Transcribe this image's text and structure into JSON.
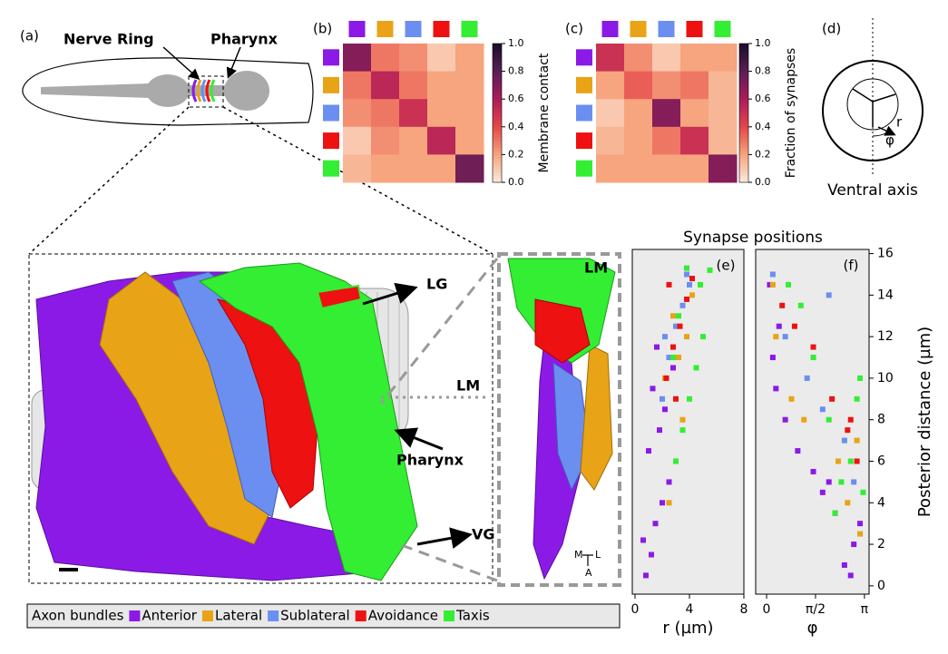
{
  "figure": {
    "panel_labels": [
      "(a)",
      "(b)",
      "(c)",
      "(d)",
      "(e)",
      "(f)"
    ],
    "worm_labels": [
      "Nerve Ring",
      "Pharynx"
    ],
    "axis_diagram": {
      "r": "r",
      "phi": "φ",
      "caption": "Ventral axis"
    },
    "render_labels": [
      "LG",
      "LM",
      "Pharynx",
      "VG"
    ],
    "cross_section": {
      "label": "LM",
      "orientation": [
        "M",
        "L",
        "A"
      ]
    },
    "scatter_title": "Synapse positions",
    "legend_title": "Axon bundles"
  },
  "chart_data": [
    {
      "type": "heatmap",
      "colorbar_label": "Membrane contact",
      "category_colors": [
        "#8c1ae6",
        "#e8a317",
        "#6b8ff0",
        "#ee1111",
        "#33ee33"
      ],
      "values": [
        [
          0.7,
          0.3,
          0.25,
          0.1,
          0.2
        ],
        [
          0.3,
          0.55,
          0.3,
          0.2,
          0.2
        ],
        [
          0.25,
          0.3,
          0.5,
          0.2,
          0.2
        ],
        [
          0.1,
          0.25,
          0.2,
          0.55,
          0.2
        ],
        [
          0.15,
          0.2,
          0.2,
          0.2,
          0.75
        ]
      ],
      "zlim": [
        0,
        1
      ],
      "zticks": [
        {
          "value": 0,
          "label": "0.0"
        },
        0.2,
        0.4,
        0.6,
        0.8,
        {
          "value": 1,
          "label": "1.0"
        }
      ],
      "colorscale": [
        "#fbebe0",
        "#f6a57e",
        "#e5484a",
        "#ad1c5a",
        "#5a1e55",
        "#1a0e2a"
      ]
    },
    {
      "type": "heatmap",
      "colorbar_label": "Fraction of synapses",
      "category_colors": [
        "#8c1ae6",
        "#e8a317",
        "#6b8ff0",
        "#ee1111",
        "#33ee33"
      ],
      "values": [
        [
          0.5,
          0.25,
          0.1,
          0.2,
          0.2
        ],
        [
          0.2,
          0.35,
          0.25,
          0.3,
          0.15
        ],
        [
          0.1,
          0.2,
          0.7,
          0.2,
          0.15
        ],
        [
          0.15,
          0.2,
          0.3,
          0.5,
          0.15
        ],
        [
          0.2,
          0.2,
          0.2,
          0.2,
          0.7
        ]
      ],
      "zlim": [
        0,
        1
      ],
      "zticks": [
        {
          "value": 0,
          "label": "0.0"
        },
        0.2,
        0.4,
        0.6,
        0.8,
        {
          "value": 1,
          "label": "1.0"
        }
      ],
      "colorscale": [
        "#fbebe0",
        "#f6a57e",
        "#e5484a",
        "#ad1c5a",
        "#5a1e55",
        "#1a0e2a"
      ]
    },
    {
      "type": "scatter",
      "xlabel": "r (µm)",
      "xlim": [
        -0.2,
        8
      ],
      "xticks": [
        0,
        4,
        8
      ],
      "ylim": [
        -0.4,
        16.2
      ],
      "series": [
        {
          "name": "Anterior",
          "color": "#8c1ae6",
          "x": [
            0.8,
            1.2,
            1.5,
            2.0,
            2.5,
            1.0,
            1.8,
            2.2,
            1.3,
            2.8,
            0.6,
            1.6
          ],
          "values": [
            0.5,
            1.5,
            3,
            4,
            5,
            6.5,
            7.5,
            8.5,
            9.5,
            10.5,
            2.2,
            11.5
          ]
        },
        {
          "name": "Lateral",
          "color": "#e8a317",
          "x": [
            2.5,
            3.0,
            3.5,
            2.2,
            3.8,
            4.2,
            2.8,
            3.2
          ],
          "values": [
            4,
            6,
            8,
            10,
            12,
            14,
            13,
            11
          ]
        },
        {
          "name": "Sublateral",
          "color": "#6b8ff0",
          "x": [
            2.0,
            2.5,
            3.0,
            3.5,
            4.0,
            2.2,
            3.8
          ],
          "values": [
            9,
            11,
            12.5,
            13.5,
            14.5,
            12,
            15
          ]
        },
        {
          "name": "Avoidance",
          "color": "#ee1111",
          "x": [
            2.3,
            2.8,
            3.3,
            3.8,
            2.5,
            4.2,
            3.0
          ],
          "values": [
            10,
            11.5,
            12.5,
            13.8,
            14.5,
            14.8,
            9
          ]
        },
        {
          "name": "Taxis",
          "color": "#33ee33",
          "x": [
            3.0,
            3.5,
            4.0,
            4.5,
            5.0,
            3.2,
            4.8,
            5.5,
            2.8,
            3.8
          ],
          "values": [
            6,
            7.5,
            9,
            10.5,
            12,
            13,
            14.5,
            15.2,
            11,
            15.3
          ]
        }
      ]
    },
    {
      "type": "scatter",
      "xlabel": "φ",
      "ylabel": "Posterior distance (µm)",
      "xlim": [
        -0.35,
        3.29
      ],
      "xticks": [
        0,
        {
          "value": 1.5708,
          "label": "π/2"
        },
        {
          "value": 3.1416,
          "label": "π"
        }
      ],
      "ylim": [
        -0.4,
        16.2
      ],
      "yticks": [
        0,
        2,
        4,
        6,
        8,
        10,
        12,
        14,
        16
      ],
      "series": [
        {
          "name": "Anterior",
          "color": "#8c1ae6",
          "x": [
            2.5,
            2.8,
            3.0,
            2.2,
            1.8,
            1.5,
            1.0,
            0.6,
            0.3,
            0.2,
            0.4,
            0.1,
            2.7,
            2.0
          ],
          "values": [
            1,
            2,
            3,
            3.5,
            4.5,
            5.5,
            6.5,
            8,
            9.5,
            11,
            12.5,
            14.5,
            0.5,
            5
          ]
        },
        {
          "name": "Lateral",
          "color": "#e8a317",
          "x": [
            3.0,
            2.6,
            2.3,
            1.2,
            0.8,
            0.3,
            0.2,
            2.9
          ],
          "values": [
            2.5,
            4,
            6,
            8,
            9,
            12,
            14.5,
            7
          ]
        },
        {
          "name": "Sublateral",
          "color": "#6b8ff0",
          "x": [
            2.8,
            2.5,
            1.8,
            1.3,
            0.6,
            0.2,
            2.0
          ],
          "values": [
            5,
            7,
            8.5,
            10,
            12,
            15,
            14
          ]
        },
        {
          "name": "Avoidance",
          "color": "#ee1111",
          "x": [
            2.9,
            2.6,
            2.1,
            1.5,
            0.9,
            0.5,
            2.7
          ],
          "values": [
            6,
            7.5,
            9,
            11.5,
            12.5,
            13.5,
            8
          ]
        },
        {
          "name": "Taxis",
          "color": "#33ee33",
          "x": [
            3.0,
            2.9,
            2.7,
            2.4,
            2.0,
            1.5,
            1.1,
            0.7,
            2.2,
            3.1
          ],
          "values": [
            10,
            9,
            6,
            5,
            8,
            11,
            13.5,
            14.5,
            3.5,
            4.5
          ]
        }
      ]
    }
  ]
}
